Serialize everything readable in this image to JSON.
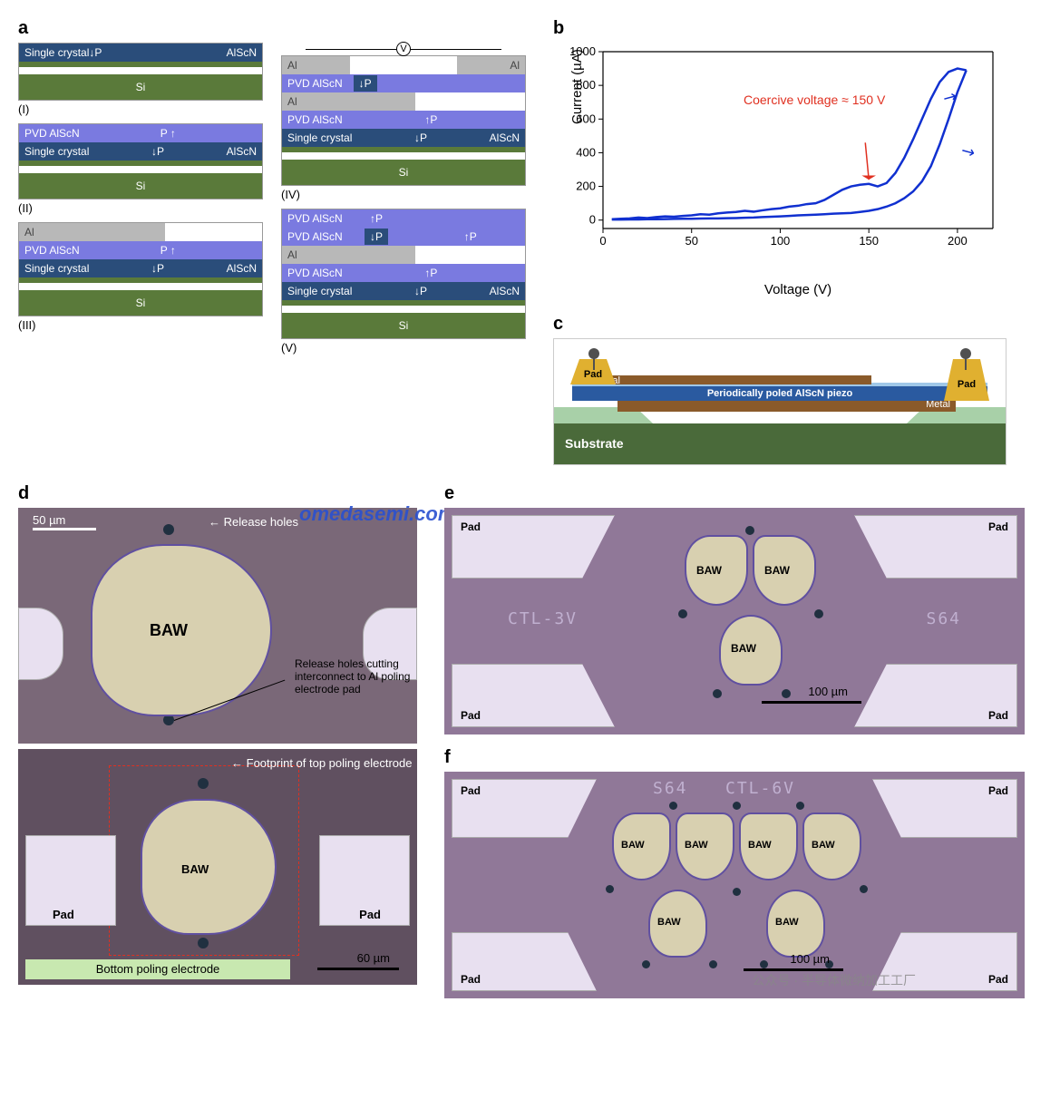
{
  "labels": {
    "a": "a",
    "b": "b",
    "c": "c",
    "d": "d",
    "e": "e",
    "f": "f"
  },
  "panel_a": {
    "colors": {
      "single_crystal": "#2a4d7a",
      "pvd": "#7a7ae0",
      "al": "#b8b8b8",
      "si": "#5a7a3a",
      "arrow_text": "#ffffff"
    },
    "text": {
      "single_crystal": "Single crystal",
      "alscn": "AlScN",
      "pvd": "PVD AlScN",
      "al": "Al",
      "si": "Si",
      "p_down": "↓P",
      "p_up": "↑P",
      "p_up_alt": "P ↑",
      "voltage_symbol": "V"
    },
    "roman": {
      "i": "(I)",
      "ii": "(II)",
      "iii": "(III)",
      "iv": "(IV)",
      "v": "(V)"
    }
  },
  "panel_b": {
    "type": "line",
    "title": "",
    "xlabel": "Voltage (V)",
    "ylabel": "Current (µA)",
    "xlim": [
      0,
      220
    ],
    "ylim": [
      -50,
      1000
    ],
    "xticks": [
      0,
      50,
      100,
      150,
      200
    ],
    "yticks": [
      0,
      200,
      400,
      600,
      800,
      1000
    ],
    "line_color": "#1030d0",
    "line_width": 2.5,
    "annotation": "Coercive voltage ≈ 150 V",
    "annotation_color": "#e03020",
    "background_color": "#ffffff",
    "axis_color": "#000000",
    "tick_fontsize": 13,
    "label_fontsize": 15,
    "series_up": {
      "x": [
        5,
        10,
        15,
        20,
        25,
        30,
        35,
        40,
        45,
        50,
        55,
        60,
        65,
        70,
        75,
        80,
        85,
        90,
        95,
        100,
        105,
        110,
        115,
        120,
        125,
        130,
        135,
        140,
        145,
        150,
        155,
        160,
        165,
        170,
        175,
        180,
        185,
        190,
        195,
        200,
        205
      ],
      "y": [
        5,
        8,
        10,
        15,
        12,
        18,
        22,
        20,
        25,
        28,
        35,
        32,
        40,
        45,
        48,
        55,
        50,
        58,
        65,
        70,
        80,
        85,
        95,
        100,
        120,
        150,
        180,
        200,
        210,
        215,
        200,
        220,
        280,
        370,
        480,
        600,
        720,
        820,
        880,
        900,
        890
      ]
    },
    "series_down": {
      "x": [
        205,
        200,
        195,
        190,
        185,
        180,
        175,
        170,
        165,
        160,
        155,
        150,
        145,
        140,
        135,
        130,
        125,
        120,
        115,
        110,
        105,
        100,
        95,
        90,
        85,
        80,
        75,
        70,
        65,
        60,
        55,
        50,
        45,
        40,
        35,
        30,
        25,
        20,
        15,
        10,
        5
      ],
      "y": [
        890,
        760,
        600,
        450,
        320,
        230,
        170,
        130,
        100,
        80,
        65,
        55,
        48,
        42,
        40,
        38,
        35,
        32,
        30,
        28,
        25,
        22,
        20,
        18,
        15,
        14,
        12,
        11,
        10,
        10,
        9,
        8,
        8,
        7,
        6,
        5,
        5,
        4,
        4,
        3,
        3
      ]
    }
  },
  "panel_c": {
    "colors": {
      "substrate": "#4a6a3a",
      "substrate_top": "#a8d0a8",
      "cavity": "#ffffff",
      "metal": "#8a5a2a",
      "piezo": "#2a5aa0",
      "piezo_light": "#a0c8e8",
      "pad": "#e0b030",
      "probe": "#505050"
    },
    "text": {
      "pad": "Pad",
      "metal": "Metal",
      "piezo": "Periodically poled AlScN piezo",
      "substrate": "Substrate"
    }
  },
  "panel_d": {
    "watermark": "omedasemi.com",
    "scale1": "50 µm",
    "scale2": "60 µm",
    "labels": {
      "release_holes": "Release holes",
      "baw": "BAW",
      "pad": "Pad",
      "callout1": "Release holes cutting interconnect to Al poling electrode pad",
      "footprint": "Footprint of top poling electrode",
      "bottom_electrode": "Bottom poling electrode"
    },
    "colors": {
      "bg": "#786878",
      "baw_fill": "#d8d0b0",
      "baw_border": "#6050a0",
      "pad_fill": "#e8e0f0",
      "hole": "#203040",
      "dash": "#e03020",
      "bottom_strip": "#c8e8b0"
    }
  },
  "panel_e": {
    "scale": "100 µm",
    "labels": {
      "pad": "Pad",
      "baw": "BAW"
    },
    "etched": {
      "left": "CTL-3V",
      "right": "S64"
    },
    "colors": {
      "bg": "#887090",
      "baw_fill": "#d8d0b0",
      "pad_fill": "#e8e0f0"
    }
  },
  "panel_f": {
    "scale": "100 µm",
    "labels": {
      "pad": "Pad",
      "baw": "BAW"
    },
    "etched": {
      "left": "S64",
      "right": "CTL-6V"
    },
    "watermark": "公众号 · 半导体微纳加工工厂",
    "colors": {
      "bg": "#887090",
      "baw_fill": "#d8d0b0",
      "pad_fill": "#e8e0f0"
    }
  }
}
